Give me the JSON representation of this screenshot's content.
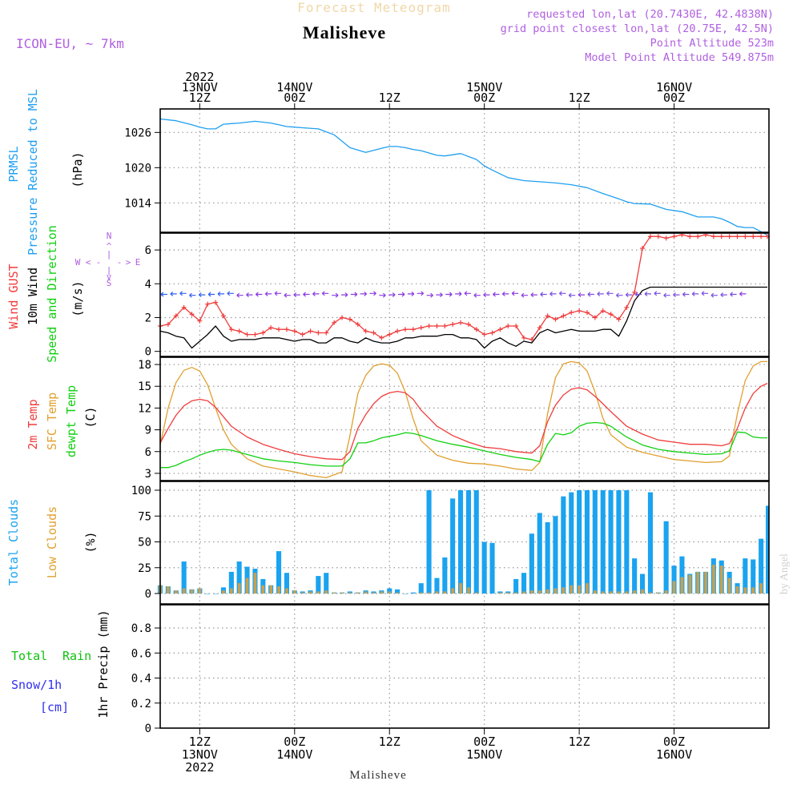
{
  "header": {
    "subtitle": "Forecast Meteogram",
    "location": "Malisheve",
    "model": "ICON-EU, ~ 7km",
    "requested": "requested lon,lat (20.7430E, 42.4838N)",
    "gridpoint": "grid point closest lon,lat (20.75E, 42.5N)",
    "altitude": "Point Altitude 523m",
    "model_altitude": "Model Point Altitude 549.875m",
    "watermark": "by Angel",
    "footer_location": "Malisheve"
  },
  "colors": {
    "pressure": "#1f9ff0",
    "gust": "#f03c3c",
    "wind": "#000000",
    "temp2m": "#f03c3c",
    "sfc": "#e0a030",
    "dewpt": "#10d010",
    "total_clouds": "#1aa3f0",
    "low_clouds": "#c8a050",
    "purple": "#b060e0",
    "rain": "#10c010",
    "snow": "#3030f0"
  },
  "time_axis": {
    "top_labels": [
      {
        "h": 12,
        "lines": [
          "2022",
          "13NOV",
          "12Z"
        ]
      },
      {
        "h": 24,
        "lines": [
          "14NOV",
          "00Z"
        ]
      },
      {
        "h": 36,
        "lines": [
          "12Z"
        ]
      },
      {
        "h": 48,
        "lines": [
          "15NOV",
          "00Z"
        ]
      },
      {
        "h": 60,
        "lines": [
          "12Z"
        ]
      },
      {
        "h": 72,
        "lines": [
          "16NOV",
          "00Z"
        ]
      }
    ],
    "bottom_labels": [
      {
        "h": 12,
        "lines": [
          "12Z",
          "13NOV",
          "2022"
        ]
      },
      {
        "h": 24,
        "lines": [
          "00Z",
          "14NOV"
        ]
      },
      {
        "h": 36,
        "lines": [
          "12Z"
        ]
      },
      {
        "h": 48,
        "lines": [
          "00Z",
          "15NOV"
        ]
      },
      {
        "h": 60,
        "lines": [
          "12Z"
        ]
      },
      {
        "h": 72,
        "lines": [
          "00Z",
          "16NOV"
        ]
      }
    ]
  },
  "panels": {
    "pressure": {
      "labels": [
        "PRMSL",
        "Pressure Reduced to MSL",
        "(hPa)"
      ],
      "yticks": [
        1014,
        1020,
        1026
      ]
    },
    "wind": {
      "labels": [
        "Wind GUST",
        "10m Wind",
        "Speed and Direction",
        "(m/s)"
      ],
      "yticks": [
        0,
        2,
        4,
        6
      ],
      "compass": {
        "n": "N",
        "s": "S",
        "w": "W",
        "e": "E"
      }
    },
    "temp": {
      "labels": [
        "2m Temp",
        "SFC Temp",
        "dewpt Temp",
        "(C)"
      ],
      "yticks": [
        3,
        6,
        9,
        12,
        15,
        18
      ]
    },
    "clouds": {
      "labels": [
        "Total Clouds",
        "Low Clouds",
        "(%)"
      ],
      "yticks": [
        0,
        25,
        50,
        75,
        100
      ]
    },
    "precip": {
      "labels": [
        "Total",
        "Rain",
        "Snow/1h",
        "[cm]",
        "1hr Precip (mm)"
      ],
      "yticks": [
        "0",
        "0.2",
        "0.4",
        "0.6",
        "0.8"
      ]
    }
  },
  "chart_data": [
    {
      "type": "line",
      "title": "PRMSL Pressure Reduced to MSL",
      "ylabel": "(hPa)",
      "x_unit": "forecast hour (0 = 13NOV 00Z)",
      "ylim": [
        1009,
        1030
      ],
      "x": [
        7,
        9,
        11,
        12,
        13,
        14,
        15,
        16,
        17,
        19,
        21,
        22,
        23,
        24,
        25,
        27,
        29,
        30,
        31,
        33,
        35,
        36,
        37,
        38,
        39,
        40,
        41,
        42,
        43,
        45,
        47,
        48,
        49,
        51,
        53,
        55,
        57,
        59,
        61,
        63,
        65,
        66,
        67,
        69,
        71,
        73,
        75,
        77,
        78,
        79,
        80,
        81,
        82,
        83,
        83.8
      ],
      "series": [
        {
          "name": "PRMSL",
          "values": [
            1028.3,
            1028.0,
            1027.3,
            1026.9,
            1026.6,
            1026.6,
            1027.4,
            1027.5,
            1027.6,
            1027.9,
            1027.6,
            1027.3,
            1027.0,
            1026.9,
            1026.8,
            1026.6,
            1025.6,
            1024.5,
            1023.4,
            1022.6,
            1023.3,
            1023.6,
            1023.6,
            1023.4,
            1023.1,
            1022.9,
            1022.5,
            1022.1,
            1022.0,
            1022.4,
            1021.4,
            1020.3,
            1019.6,
            1018.3,
            1017.8,
            1017.6,
            1017.4,
            1017.1,
            1016.6,
            1015.6,
            1014.7,
            1014.2,
            1013.9,
            1013.8,
            1012.9,
            1012.5,
            1011.6,
            1011.6,
            1011.3,
            1010.7,
            1010.0,
            1009.8,
            1009.8,
            1009.1,
            1008.5
          ]
        }
      ]
    },
    {
      "type": "line",
      "title": "Wind GUST / 10m Wind Speed and Direction",
      "ylabel": "(m/s)",
      "x_unit": "forecast hour (0 = 13NOV 00Z)",
      "ylim": [
        -0.3,
        7
      ],
      "x": [
        7,
        8,
        9,
        10,
        11,
        12,
        13,
        14,
        15,
        16,
        17,
        18,
        19,
        20,
        21,
        22,
        23,
        24,
        25,
        26,
        27,
        28,
        29,
        30,
        31,
        32,
        33,
        34,
        35,
        36,
        37,
        38,
        39,
        40,
        41,
        42,
        43,
        44,
        45,
        46,
        47,
        48,
        49,
        50,
        51,
        52,
        53,
        54,
        55,
        56,
        57,
        58,
        59,
        60,
        61,
        62,
        63,
        64,
        65,
        66,
        67,
        68,
        69,
        70,
        71,
        72,
        73,
        74,
        75,
        76,
        77,
        78,
        79,
        80,
        81,
        82,
        83,
        83.8
      ],
      "series": [
        {
          "name": "Wind GUST",
          "values": [
            1.5,
            1.6,
            2.1,
            2.6,
            2.2,
            1.8,
            2.8,
            2.9,
            2.1,
            1.3,
            1.2,
            1.0,
            1.0,
            1.1,
            1.4,
            1.3,
            1.3,
            1.2,
            1.0,
            1.2,
            1.1,
            1.1,
            1.7,
            2.0,
            1.9,
            1.6,
            1.2,
            1.1,
            0.8,
            1.0,
            1.2,
            1.3,
            1.3,
            1.4,
            1.5,
            1.5,
            1.5,
            1.6,
            1.7,
            1.6,
            1.3,
            1.0,
            1.1,
            1.3,
            1.5,
            1.5,
            0.8,
            0.7,
            1.4,
            2.1,
            1.9,
            2.1,
            2.3,
            2.4,
            2.3,
            2.0,
            2.4,
            2.2,
            1.9,
            2.6,
            3.5,
            6.1,
            6.8,
            6.8,
            6.7,
            6.8,
            6.9,
            6.8,
            6.8,
            6.9,
            6.8,
            6.8,
            6.8,
            6.8,
            6.8,
            6.8,
            6.8,
            6.8
          ]
        },
        {
          "name": "10m Wind",
          "values": [
            1.2,
            1.1,
            0.9,
            0.8,
            0.2,
            0.6,
            1.0,
            1.5,
            0.9,
            0.6,
            0.7,
            0.7,
            0.7,
            0.8,
            0.8,
            0.8,
            0.7,
            0.6,
            0.7,
            0.7,
            0.5,
            0.5,
            0.8,
            0.8,
            0.6,
            0.5,
            0.8,
            0.6,
            0.5,
            0.5,
            0.6,
            0.8,
            0.8,
            0.9,
            0.9,
            0.9,
            1.0,
            1.0,
            0.8,
            0.8,
            0.7,
            0.2,
            0.6,
            0.8,
            0.5,
            0.3,
            0.6,
            0.5,
            1.1,
            1.3,
            1.1,
            1.2,
            1.3,
            1.2,
            1.2,
            1.2,
            1.3,
            1.3,
            0.9,
            1.8,
            3.0,
            3.6,
            3.8,
            3.8,
            3.8,
            3.8,
            3.8,
            3.8,
            3.8,
            3.8,
            3.8,
            3.8,
            3.8,
            3.8,
            3.8,
            3.8,
            3.8,
            3.8
          ]
        }
      ]
    },
    {
      "type": "line",
      "title": "2m Temp / SFC Temp / dewpt Temp",
      "ylabel": "(C)",
      "x_unit": "forecast hour (0 = 13NOV 00Z)",
      "ylim": [
        2,
        19
      ],
      "x": [
        7,
        8,
        9,
        10,
        11,
        12,
        13,
        14,
        15,
        16,
        18,
        20,
        22,
        24,
        26,
        28,
        30,
        31,
        32,
        33,
        34,
        35,
        36,
        37,
        38,
        39,
        40,
        42,
        44,
        46,
        48,
        50,
        52,
        54,
        55,
        56,
        57,
        58,
        59,
        60,
        61,
        62,
        63,
        64,
        66,
        68,
        70,
        72,
        74,
        76,
        78,
        79,
        80,
        81,
        82,
        83,
        83.8
      ],
      "series": [
        {
          "name": "2m Temp",
          "values": [
            7.2,
            9.2,
            11.0,
            12.3,
            13.0,
            13.2,
            13.0,
            12.1,
            10.8,
            9.5,
            8.0,
            7.0,
            6.3,
            5.7,
            5.3,
            5.0,
            4.9,
            6.0,
            9.2,
            11.1,
            12.6,
            13.6,
            14.1,
            14.3,
            14.1,
            13.2,
            11.7,
            9.5,
            8.2,
            7.3,
            6.6,
            6.4,
            6.0,
            5.8,
            6.8,
            10.1,
            12.4,
            13.8,
            14.6,
            14.8,
            14.5,
            13.6,
            12.6,
            11.5,
            9.5,
            8.4,
            7.6,
            7.3,
            7.0,
            7.0,
            6.8,
            7.1,
            9.2,
            12.0,
            14.0,
            15.0,
            15.4
          ]
        },
        {
          "name": "SFC Temp",
          "values": [
            6.9,
            12.0,
            15.5,
            17.2,
            17.6,
            17.1,
            15.2,
            12.0,
            9.0,
            7.0,
            5.0,
            4.0,
            3.6,
            3.2,
            2.7,
            2.4,
            3.2,
            8.2,
            14.0,
            16.5,
            17.8,
            18.1,
            17.9,
            16.8,
            14.2,
            10.5,
            7.5,
            5.5,
            4.8,
            4.4,
            4.3,
            4.0,
            3.6,
            3.4,
            4.5,
            11.2,
            16.2,
            18.1,
            18.4,
            18.2,
            17.1,
            14.2,
            10.6,
            8.3,
            6.6,
            5.9,
            5.4,
            4.9,
            4.7,
            4.5,
            4.6,
            5.4,
            11.2,
            15.8,
            17.8,
            18.4,
            18.4
          ]
        },
        {
          "name": "dewpt Temp",
          "values": [
            3.8,
            3.8,
            4.1,
            4.6,
            5.0,
            5.5,
            5.9,
            6.2,
            6.3,
            6.2,
            5.6,
            5.0,
            4.7,
            4.5,
            4.2,
            4.0,
            4.0,
            5.0,
            7.2,
            7.2,
            7.5,
            7.9,
            8.1,
            8.3,
            8.6,
            8.5,
            8.2,
            7.5,
            7.0,
            6.6,
            6.1,
            5.6,
            5.2,
            4.9,
            4.6,
            7.0,
            8.5,
            8.3,
            8.6,
            9.5,
            9.9,
            10.0,
            9.9,
            9.5,
            8.0,
            6.9,
            6.3,
            6.0,
            5.8,
            5.6,
            5.7,
            6.1,
            8.7,
            8.6,
            8.0,
            7.9,
            7.9
          ]
        }
      ]
    },
    {
      "type": "bar",
      "title": "Total Clouds / Low Clouds",
      "ylabel": "(%)",
      "x_unit": "forecast hour (0 = 13NOV 00Z)",
      "ylim": [
        0,
        100
      ],
      "x": [
        7,
        8,
        9,
        10,
        11,
        12,
        13,
        14,
        15,
        16,
        17,
        18,
        19,
        20,
        21,
        22,
        23,
        24,
        25,
        26,
        27,
        28,
        29,
        30,
        31,
        32,
        33,
        34,
        35,
        36,
        37,
        38,
        39,
        40,
        41,
        42,
        43,
        44,
        45,
        46,
        47,
        48,
        49,
        50,
        51,
        52,
        53,
        54,
        55,
        56,
        57,
        58,
        59,
        60,
        61,
        62,
        63,
        64,
        65,
        66,
        67,
        68,
        69,
        70,
        71,
        72,
        73,
        74,
        75,
        76,
        77,
        78,
        79,
        80,
        81,
        82,
        83,
        84
      ],
      "series": [
        {
          "name": "Total Clouds",
          "values": [
            8,
            7,
            3,
            31,
            4,
            5,
            0,
            0,
            6,
            21,
            31,
            26,
            24,
            14,
            8,
            41,
            20,
            3,
            2,
            3,
            17,
            20,
            1,
            1,
            2,
            1,
            3,
            2,
            3,
            5,
            4,
            0,
            1,
            10,
            100,
            15,
            35,
            92,
            100,
            100,
            100,
            50,
            49,
            2,
            2,
            14,
            20,
            58,
            78,
            69,
            75,
            94,
            98,
            100,
            100,
            100,
            100,
            100,
            100,
            100,
            34,
            19,
            98,
            1,
            70,
            27,
            36,
            19,
            21,
            21,
            34,
            32,
            21,
            10,
            34,
            33,
            53,
            85
          ]
        },
        {
          "name": "Low Clouds",
          "values": [
            8,
            7,
            3,
            5,
            4,
            5,
            0,
            0,
            3,
            5,
            10,
            15,
            20,
            8,
            8,
            7,
            5,
            3,
            1,
            2,
            2,
            3,
            1,
            1,
            1,
            1,
            2,
            1,
            2,
            2,
            1,
            0,
            0,
            1,
            1,
            2,
            2,
            5,
            10,
            6,
            1,
            0,
            0,
            1,
            1,
            1,
            2,
            3,
            3,
            4,
            5,
            6,
            8,
            8,
            10,
            3,
            2,
            2,
            2,
            2,
            3,
            4,
            1,
            1,
            3,
            12,
            16,
            18,
            21,
            21,
            28,
            27,
            15,
            7,
            6,
            6,
            10,
            22
          ]
        }
      ]
    },
    {
      "type": "line",
      "title": "1hr Precip (mm)",
      "ylabel": "1hr Precip (mm)",
      "ylim": [
        0,
        0.98
      ],
      "series": []
    }
  ]
}
